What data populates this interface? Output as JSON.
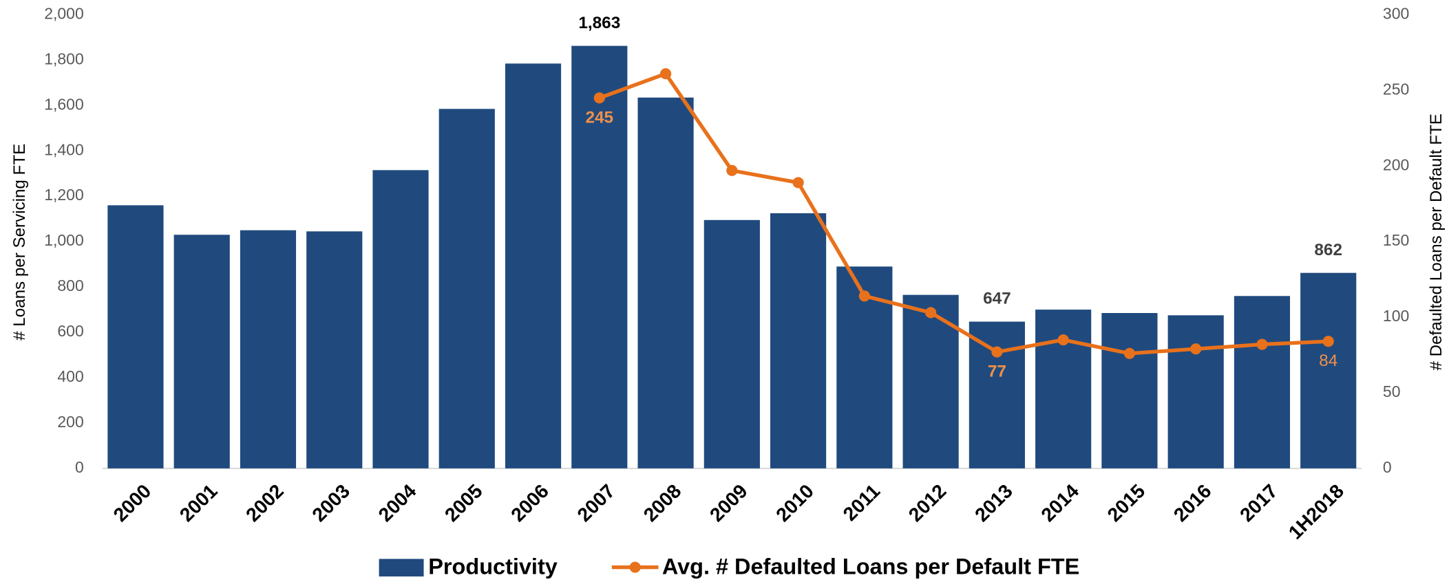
{
  "chart_data": {
    "type": "bar_line",
    "categories": [
      "2000",
      "2001",
      "2002",
      "2003",
      "2004",
      "2005",
      "2006",
      "2007",
      "2008",
      "2009",
      "2010",
      "2011",
      "2012",
      "2013",
      "2014",
      "2015",
      "2016",
      "2017",
      "1H2018"
    ],
    "y_label": "# Loans per Servicing FTE",
    "y2_label": "# Defaulted Loans per Default FTE",
    "ylim": [
      0,
      2000
    ],
    "yticks": [
      0,
      200,
      400,
      600,
      800,
      {
        "value": 1000,
        "label": "1,000"
      },
      {
        "value": 1200,
        "label": "1,200"
      },
      {
        "value": 1400,
        "label": "1,400"
      },
      {
        "value": 1600,
        "label": "1,600"
      },
      {
        "value": 1800,
        "label": "1,800"
      },
      {
        "value": 2000,
        "label": "2,000"
      }
    ],
    "y2lim": [
      0,
      300
    ],
    "y2ticks": [
      0,
      50,
      100,
      150,
      200,
      250,
      300
    ],
    "series": [
      {
        "name": "Productivity",
        "type": "bar",
        "color": "#204a7e",
        "values": [
          1160,
          1030,
          1050,
          1045,
          1315,
          1585,
          1785,
          1863,
          1635,
          1095,
          1125,
          890,
          765,
          647,
          700,
          685,
          675,
          760,
          862
        ],
        "value_labels": [
          null,
          null,
          null,
          null,
          null,
          null,
          null,
          "1,863",
          null,
          null,
          null,
          null,
          null,
          "647",
          null,
          null,
          null,
          null,
          "862"
        ]
      },
      {
        "name": "Avg. # Defaulted Loans per Default FTE",
        "type": "line",
        "axis": "y2",
        "color": "#e8711c",
        "values": [
          null,
          null,
          null,
          null,
          null,
          null,
          null,
          245,
          261,
          197,
          189,
          114,
          103,
          77,
          85,
          76,
          79,
          82,
          84
        ],
        "value_labels": [
          null,
          null,
          null,
          null,
          null,
          null,
          null,
          "245",
          null,
          null,
          null,
          null,
          null,
          "77",
          null,
          null,
          null,
          null,
          "84"
        ]
      }
    ]
  }
}
